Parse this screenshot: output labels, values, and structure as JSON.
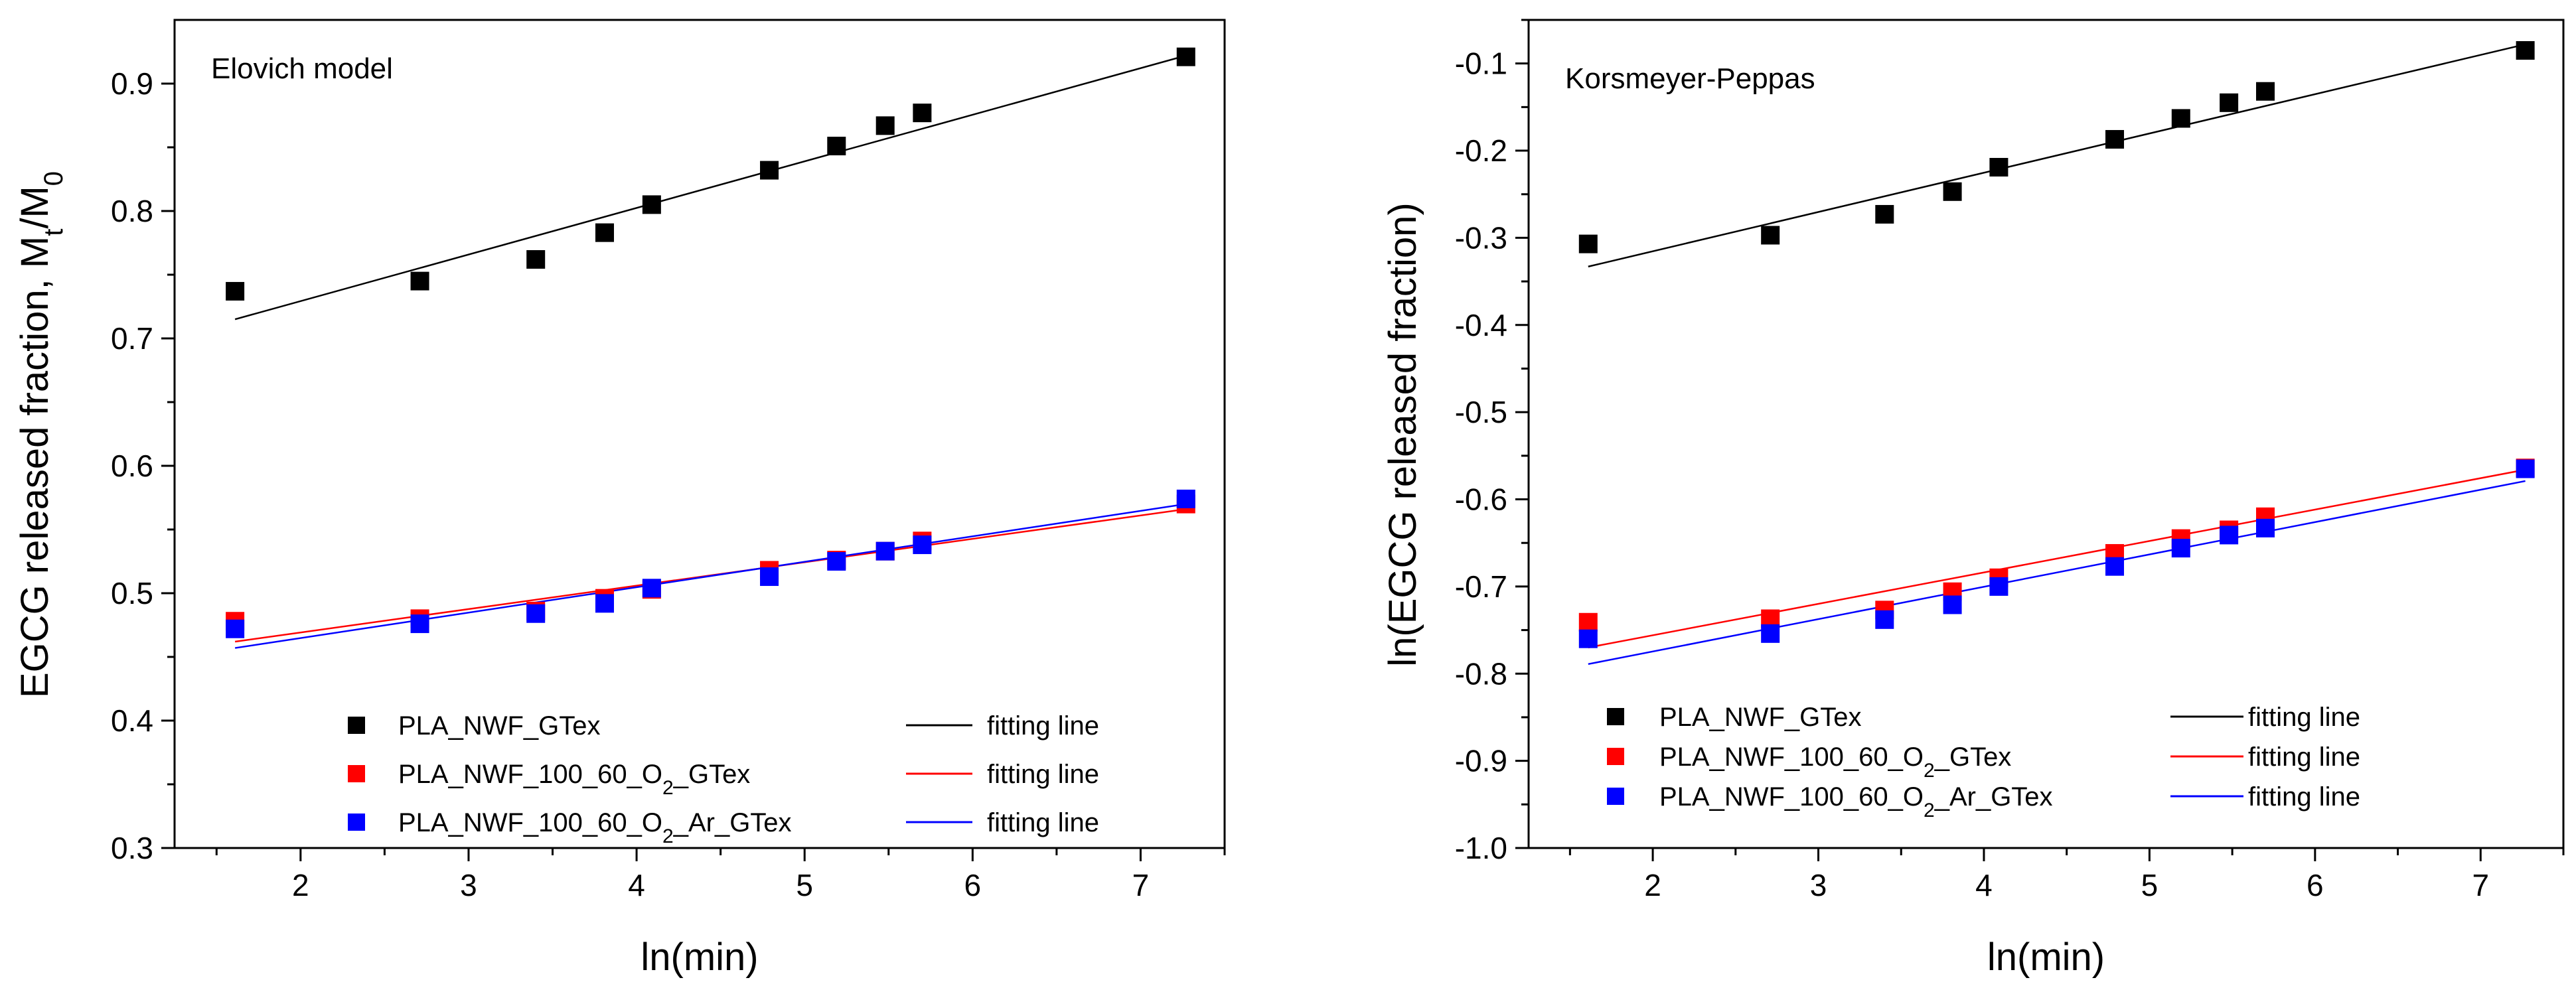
{
  "chart_data": [
    {
      "type": "scatter",
      "title": "Elovich model",
      "xlabel": "ln(min)",
      "ylabel": {
        "main": "EGCG released fraction, M",
        "sub1": "t",
        "mid": "/M",
        "sub2": "0"
      },
      "xlim": [
        1.25,
        7.5
      ],
      "ylim": [
        0.3,
        0.95
      ],
      "xticks": [
        2,
        3,
        4,
        5,
        6,
        7
      ],
      "yticks": [
        0.3,
        0.4,
        0.5,
        0.6,
        0.7,
        0.8,
        0.9
      ],
      "ytick_labels": [
        "0.3",
        "0.4",
        "0.5",
        "0.6",
        "0.7",
        "0.8",
        "0.9"
      ],
      "x": [
        1.61,
        2.71,
        3.4,
        3.81,
        4.09,
        4.79,
        5.19,
        5.48,
        5.7,
        7.27
      ],
      "series": [
        {
          "name": "PLA_NWF_GTex",
          "color": "#000000",
          "values": [
            0.737,
            0.745,
            0.762,
            0.783,
            0.805,
            0.832,
            0.851,
            0.867,
            0.877,
            0.921
          ],
          "fit": [
            [
              1.61,
              0.715
            ],
            [
              7.27,
              0.922
            ]
          ]
        },
        {
          "name": "PLA_NWF_100_60_O2_GTex",
          "color": "#ff0000",
          "values": [
            0.478,
            0.48,
            0.486,
            0.496,
            0.503,
            0.518,
            0.526,
            0.533,
            0.541,
            0.57
          ],
          "fit": [
            [
              1.61,
              0.462
            ],
            [
              7.27,
              0.566
            ]
          ]
        },
        {
          "name": "PLA_NWF_100_60_O2_Ar_GTex",
          "color": "#0000ff",
          "values": [
            0.472,
            0.476,
            0.484,
            0.492,
            0.504,
            0.513,
            0.525,
            0.533,
            0.538,
            0.574
          ],
          "fit": [
            [
              1.61,
              0.457
            ],
            [
              7.27,
              0.57
            ]
          ]
        }
      ],
      "legend": {
        "placement": "bottom-left",
        "items": [
          {
            "label": {
              "main": "PLA_NWF_GTex"
            },
            "color": "#000000",
            "fit_label": "fitting line"
          },
          {
            "label": {
              "main": "PLA_NWF_100_60_O",
              "sub": "2",
              "tail": "_GTex"
            },
            "color": "#ff0000",
            "fit_label": "fitting line"
          },
          {
            "label": {
              "main": "PLA_NWF_100_60_O",
              "sub": "2",
              "tail": "_Ar_GTex"
            },
            "color": "#0000ff",
            "fit_label": "fitting line"
          }
        ]
      }
    },
    {
      "type": "scatter",
      "title": "Korsmeyer-Peppas",
      "xlabel": "ln(min)",
      "ylabel": {
        "main": "ln(EGCG released fraction)"
      },
      "xlim": [
        1.25,
        7.5
      ],
      "ylim": [
        -1.0,
        -0.05
      ],
      "xticks": [
        2,
        3,
        4,
        5,
        6,
        7
      ],
      "yticks": [
        -1.0,
        -0.9,
        -0.8,
        -0.7,
        -0.6,
        -0.5,
        -0.4,
        -0.3,
        -0.2,
        -0.1
      ],
      "ytick_labels": [
        "-1.0",
        "-0.9",
        "-0.8",
        "-0.7",
        "-0.6",
        "-0.5",
        "-0.4",
        "-0.3",
        "-0.2",
        "-0.1"
      ],
      "x": [
        1.61,
        2.71,
        3.4,
        3.81,
        4.09,
        4.79,
        5.19,
        5.48,
        5.7,
        7.27
      ],
      "series": [
        {
          "name": "PLA_NWF_GTex",
          "color": "#000000",
          "values": [
            -0.307,
            -0.297,
            -0.273,
            -0.247,
            -0.219,
            -0.187,
            -0.163,
            -0.145,
            -0.132,
            -0.085
          ],
          "fit": [
            [
              1.61,
              -0.333
            ],
            [
              7.27,
              -0.078
            ]
          ]
        },
        {
          "name": "PLA_NWF_100_60_O2_GTex",
          "color": "#ff0000",
          "values": [
            -0.741,
            -0.737,
            -0.727,
            -0.706,
            -0.69,
            -0.662,
            -0.645,
            -0.635,
            -0.62,
            -0.564
          ],
          "fit": [
            [
              1.61,
              -0.77
            ],
            [
              7.27,
              -0.566
            ]
          ]
        },
        {
          "name": "PLA_NWF_100_60_O2_Ar_GTex",
          "color": "#0000ff",
          "values": [
            -0.76,
            -0.754,
            -0.738,
            -0.721,
            -0.7,
            -0.677,
            -0.656,
            -0.641,
            -0.633,
            -0.565
          ],
          "fit": [
            [
              1.61,
              -0.789
            ],
            [
              7.27,
              -0.579
            ]
          ]
        }
      ],
      "legend": {
        "placement": "bottom-left",
        "items": [
          {
            "label": {
              "main": "PLA_NWF_GTex"
            },
            "color": "#000000",
            "fit_label": "fitting line"
          },
          {
            "label": {
              "main": "PLA_NWF_100_60_O",
              "sub": "2",
              "tail": "_GTex"
            },
            "color": "#ff0000",
            "fit_label": "fitting line"
          },
          {
            "label": {
              "main": "PLA_NWF_100_60_O",
              "sub": "2",
              "tail": "_Ar_GTex"
            },
            "color": "#0000ff",
            "fit_label": "fitting line"
          }
        ]
      }
    }
  ]
}
